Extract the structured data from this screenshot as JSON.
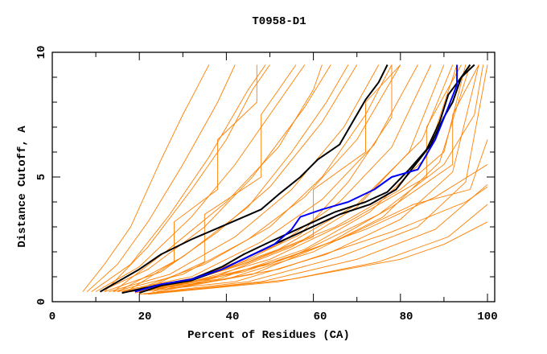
{
  "chart_data": {
    "type": "line",
    "title": "T0958-D1",
    "xlabel": "Percent of Residues (CA)",
    "ylabel": "Distance Cutoff, A",
    "xlim": [
      0,
      100
    ],
    "ylim": [
      0,
      10
    ],
    "x_ticks": [
      "0",
      "20",
      "40",
      "60",
      "80",
      "100"
    ],
    "y_ticks": [
      "0",
      "5",
      "10"
    ],
    "grid": false,
    "colors": {
      "other_models": "#ff8000",
      "highlight_black": "#000000",
      "highlight_blue": "#0000ff"
    },
    "series": [
      {
        "name": "highlight-black-1",
        "color": "#000000",
        "points": [
          [
            11,
            0.4
          ],
          [
            16,
            0.9
          ],
          [
            20,
            1.3
          ],
          [
            25,
            1.9
          ],
          [
            32,
            2.5
          ],
          [
            40,
            3.1
          ],
          [
            48,
            3.7
          ],
          [
            52,
            4.3
          ],
          [
            57,
            5.0
          ],
          [
            61,
            5.7
          ],
          [
            66,
            6.3
          ],
          [
            69,
            7.2
          ],
          [
            72,
            8.1
          ],
          [
            75,
            8.8
          ],
          [
            77,
            9.5
          ]
        ]
      },
      {
        "name": "highlight-black-2",
        "color": "#000000",
        "points": [
          [
            16,
            0.35
          ],
          [
            20,
            0.5
          ],
          [
            25,
            0.7
          ],
          [
            32,
            0.9
          ],
          [
            39,
            1.4
          ],
          [
            44,
            1.9
          ],
          [
            50,
            2.4
          ],
          [
            55,
            2.8
          ],
          [
            60,
            3.2
          ],
          [
            65,
            3.6
          ],
          [
            72,
            4.0
          ],
          [
            77,
            4.4
          ],
          [
            82,
            5.3
          ],
          [
            86,
            6.1
          ],
          [
            89,
            7.2
          ],
          [
            91,
            8.3
          ],
          [
            94,
            9.0
          ],
          [
            96,
            9.5
          ]
        ]
      },
      {
        "name": "highlight-black-3",
        "color": "#000000",
        "points": [
          [
            20,
            0.35
          ],
          [
            25,
            0.65
          ],
          [
            32,
            0.85
          ],
          [
            39,
            1.3
          ],
          [
            45,
            1.8
          ],
          [
            51,
            2.3
          ],
          [
            56,
            2.7
          ],
          [
            61,
            3.1
          ],
          [
            66,
            3.5
          ],
          [
            73,
            3.9
          ],
          [
            79,
            4.5
          ],
          [
            83,
            5.4
          ],
          [
            87,
            6.3
          ],
          [
            90,
            7.4
          ],
          [
            92,
            8.0
          ],
          [
            94,
            9.0
          ],
          [
            97,
            9.5
          ]
        ]
      },
      {
        "name": "highlight-blue",
        "color": "#0000ff",
        "points": [
          [
            19,
            0.4
          ],
          [
            25,
            0.7
          ],
          [
            32,
            0.9
          ],
          [
            39,
            1.3
          ],
          [
            45,
            1.8
          ],
          [
            51,
            2.3
          ],
          [
            55,
            2.9
          ],
          [
            57,
            3.4
          ],
          [
            62,
            3.7
          ],
          [
            68,
            4.0
          ],
          [
            74,
            4.5
          ],
          [
            78,
            5.0
          ],
          [
            84,
            5.3
          ],
          [
            88,
            6.5
          ],
          [
            91,
            7.8
          ],
          [
            93,
            8.7
          ],
          [
            93,
            9.5
          ]
        ]
      }
    ],
    "other_models": [
      [
        [
          7,
          0.4
        ],
        [
          12,
          1.5
        ],
        [
          18,
          3
        ],
        [
          25,
          5.7
        ],
        [
          30,
          7.5
        ],
        [
          36,
          9.5
        ]
      ],
      [
        [
          8,
          0.4
        ],
        [
          15,
          1.5
        ],
        [
          22,
          3.2
        ],
        [
          30,
          5.5
        ],
        [
          38,
          8
        ],
        [
          42,
          9.5
        ]
      ],
      [
        [
          9,
          0.4
        ],
        [
          18,
          1.5
        ],
        [
          27,
          3.5
        ],
        [
          36,
          5.8
        ],
        [
          45,
          8.5
        ],
        [
          49,
          9.5
        ]
      ],
      [
        [
          10,
          0.4
        ],
        [
          20,
          1.4
        ],
        [
          32,
          3.4
        ],
        [
          42,
          5.5
        ],
        [
          52,
          8
        ],
        [
          58,
          9.5
        ]
      ],
      [
        [
          11,
          0.4
        ],
        [
          22,
          1.3
        ],
        [
          35,
          3
        ],
        [
          46,
          5
        ],
        [
          58,
          7.8
        ],
        [
          64,
          9.5
        ]
      ],
      [
        [
          12,
          0.4
        ],
        [
          25,
          1.2
        ],
        [
          38,
          2.8
        ],
        [
          50,
          4.6
        ],
        [
          62,
          7.2
        ],
        [
          70,
          9.5
        ]
      ],
      [
        [
          13,
          0.4
        ],
        [
          27,
          1.1
        ],
        [
          42,
          2.6
        ],
        [
          55,
          4.5
        ],
        [
          67,
          7
        ],
        [
          75,
          9.5
        ]
      ],
      [
        [
          14,
          0.4
        ],
        [
          30,
          1.1
        ],
        [
          45,
          2.5
        ],
        [
          58,
          4.2
        ],
        [
          70,
          6.5
        ],
        [
          80,
          9.5
        ]
      ],
      [
        [
          15,
          0.4
        ],
        [
          32,
          1
        ],
        [
          48,
          2.4
        ],
        [
          62,
          4.1
        ],
        [
          74,
          6.3
        ],
        [
          84,
          9.5
        ]
      ],
      [
        [
          16,
          0.4
        ],
        [
          34,
          1
        ],
        [
          52,
          2.3
        ],
        [
          66,
          4
        ],
        [
          78,
          6.2
        ],
        [
          87,
          9.5
        ]
      ],
      [
        [
          17,
          0.4
        ],
        [
          36,
          0.9
        ],
        [
          55,
          2.2
        ],
        [
          70,
          3.8
        ],
        [
          82,
          6
        ],
        [
          90,
          9.5
        ]
      ],
      [
        [
          18,
          0.4
        ],
        [
          38,
          0.9
        ],
        [
          58,
          2.1
        ],
        [
          73,
          3.6
        ],
        [
          86,
          5.8
        ],
        [
          93,
          9.5
        ]
      ],
      [
        [
          19,
          0.4
        ],
        [
          40,
          0.9
        ],
        [
          60,
          2
        ],
        [
          76,
          3.4
        ],
        [
          89,
          5.6
        ],
        [
          96,
          9.5
        ]
      ],
      [
        [
          20,
          0.4
        ],
        [
          42,
          0.8
        ],
        [
          63,
          1.9
        ],
        [
          80,
          3.3
        ],
        [
          92,
          5.2
        ],
        [
          98,
          9.5
        ]
      ],
      [
        [
          20,
          0.3
        ],
        [
          45,
          0.8
        ],
        [
          66,
          1.8
        ],
        [
          84,
          3
        ],
        [
          95,
          4.8
        ],
        [
          100,
          9.5
        ]
      ],
      [
        [
          21,
          0.3
        ],
        [
          48,
          0.8
        ],
        [
          70,
          1.7
        ],
        [
          88,
          2.9
        ],
        [
          100,
          4.7
        ]
      ],
      [
        [
          22,
          0.3
        ],
        [
          52,
          0.8
        ],
        [
          75,
          1.6
        ],
        [
          91,
          2.6
        ],
        [
          100,
          3.9
        ]
      ],
      [
        [
          22,
          0.3
        ],
        [
          55,
          0.9
        ],
        [
          80,
          1.7
        ],
        [
          90,
          2.3
        ],
        [
          100,
          3.2
        ]
      ],
      [
        [
          18,
          0.4
        ],
        [
          35,
          1.5
        ],
        [
          50,
          3
        ],
        [
          62,
          5
        ],
        [
          72,
          7.5
        ],
        [
          78,
          9.5
        ]
      ],
      [
        [
          15,
          0.4
        ],
        [
          30,
          1.8
        ],
        [
          45,
          3.8
        ],
        [
          55,
          6
        ],
        [
          63,
          8
        ],
        [
          68,
          9.5
        ]
      ],
      [
        [
          25,
          0.5
        ],
        [
          45,
          1.6
        ],
        [
          65,
          3
        ],
        [
          80,
          4.5
        ],
        [
          90,
          6
        ],
        [
          95,
          9.5
        ]
      ],
      [
        [
          24,
          0.5
        ],
        [
          50,
          1.5
        ],
        [
          72,
          2.9
        ],
        [
          88,
          4.2
        ],
        [
          100,
          5.5
        ]
      ],
      [
        [
          26,
          0.5
        ],
        [
          52,
          1.3
        ],
        [
          78,
          2.8
        ],
        [
          95,
          4
        ],
        [
          100,
          4.6
        ]
      ],
      [
        [
          12,
          0.4
        ],
        [
          22,
          2.2
        ],
        [
          32,
          4.5
        ],
        [
          40,
          6.5
        ],
        [
          46,
          8.5
        ],
        [
          50,
          9.5
        ]
      ],
      [
        [
          14,
          0.4
        ],
        [
          26,
          2
        ],
        [
          40,
          4
        ],
        [
          52,
          6.2
        ],
        [
          60,
          8.5
        ],
        [
          62,
          9.5
        ]
      ],
      [
        [
          30,
          0.6
        ],
        [
          55,
          1.8
        ],
        [
          75,
          3.5
        ],
        [
          90,
          5.5
        ],
        [
          97,
          7.5
        ],
        [
          99,
          9.5
        ]
      ],
      [
        [
          28,
          0.6
        ],
        [
          52,
          2.1
        ],
        [
          70,
          3.9
        ],
        [
          85,
          6.5
        ],
        [
          92,
          9.5
        ]
      ],
      [
        [
          17,
          0.4
        ],
        [
          28,
          1.6
        ],
        [
          28,
          3.2
        ],
        [
          38,
          4.5
        ],
        [
          38,
          6.5
        ],
        [
          47,
          8
        ],
        [
          47,
          9.5
        ]
      ],
      [
        [
          20,
          0.4
        ],
        [
          35,
          1.6
        ],
        [
          35,
          3.5
        ],
        [
          48,
          5
        ],
        [
          48,
          7.5
        ],
        [
          56,
          9.5
        ]
      ],
      [
        [
          23,
          0.4
        ],
        [
          44,
          1.5
        ],
        [
          60,
          2.6
        ],
        [
          60,
          4.5
        ],
        [
          72,
          6
        ],
        [
          72,
          8
        ],
        [
          80,
          9.5
        ]
      ],
      [
        [
          26,
          0.5
        ],
        [
          50,
          1.7
        ],
        [
          68,
          3.2
        ],
        [
          86,
          5
        ],
        [
          86,
          7
        ],
        [
          94,
          9.5
        ]
      ],
      [
        [
          21,
          0.4
        ],
        [
          40,
          1.3
        ],
        [
          57,
          2.7
        ],
        [
          68,
          4.8
        ],
        [
          78,
          7.4
        ],
        [
          78,
          9.5
        ]
      ],
      [
        [
          24,
          0.4
        ],
        [
          46,
          1.1
        ],
        [
          64,
          2.4
        ],
        [
          78,
          3.8
        ],
        [
          92,
          5.5
        ],
        [
          92,
          7.5
        ],
        [
          98,
          9.5
        ]
      ],
      [
        [
          19,
          0.35
        ],
        [
          44,
          1.2
        ],
        [
          66,
          2.5
        ],
        [
          83,
          3.9
        ],
        [
          96,
          4.5
        ],
        [
          100,
          6.5
        ]
      ]
    ]
  }
}
